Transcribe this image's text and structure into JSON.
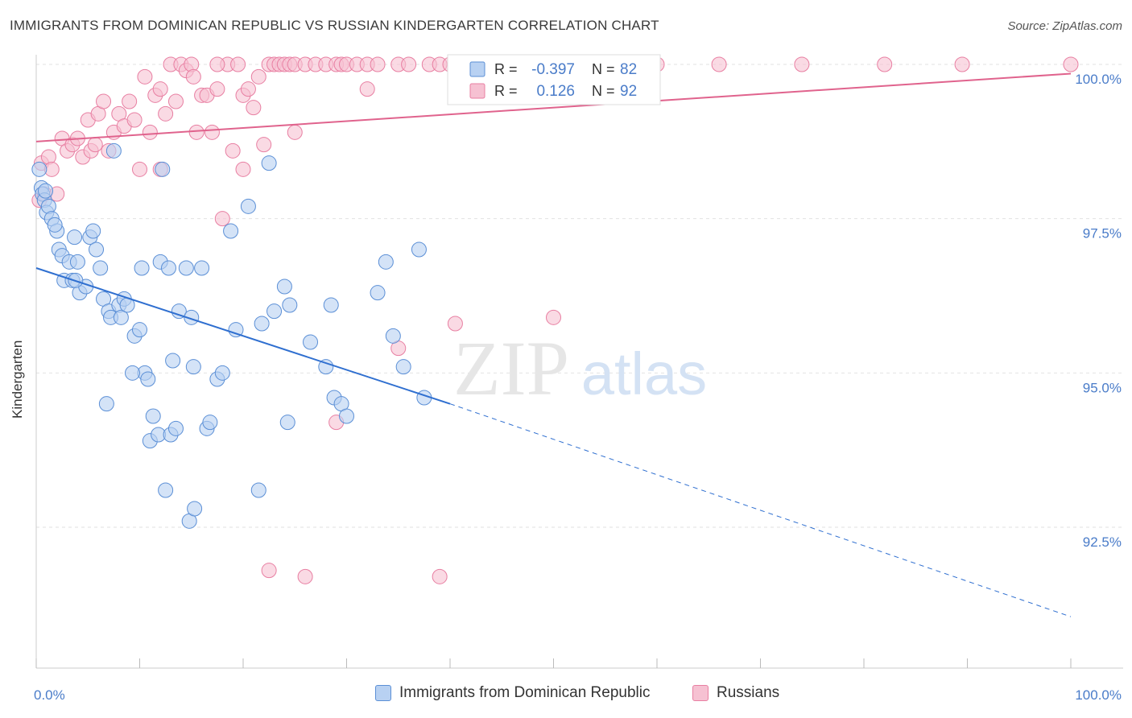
{
  "header": {
    "title": "IMMIGRANTS FROM DOMINICAN REPUBLIC VS RUSSIAN KINDERGARTEN CORRELATION CHART",
    "source": "Source: ZipAtlas.com"
  },
  "watermark": {
    "zip": "ZIP",
    "atlas": "atlas"
  },
  "colors": {
    "blue": "#5b8fd6",
    "blue_fill": "#b8d1f2",
    "blue_line": "#2f6fd0",
    "pink": "#e87fa2",
    "pink_fill": "#f6c1d2",
    "pink_line": "#e0638d",
    "axis_text": "#4a7cc9",
    "grid": "#dddddd"
  },
  "stats_legend": {
    "rows": [
      {
        "r_label": "R =",
        "r_value": "-0.397",
        "n_label": "N =",
        "n_value": "82",
        "series": "blue"
      },
      {
        "r_label": "R =",
        "r_value": "0.126",
        "n_label": "N =",
        "n_value": "92",
        "series": "pink"
      }
    ]
  },
  "chart_data": {
    "type": "scatter",
    "title": "IMMIGRANTS FROM DOMINICAN REPUBLIC VS RUSSIAN KINDERGARTEN CORRELATION CHART",
    "xlabel": "",
    "ylabel": "Kindergarten",
    "xlim": [
      0,
      100
    ],
    "ylim": [
      90.2,
      100.35
    ],
    "x_tick_labels": [
      "0.0%",
      "100.0%"
    ],
    "y_ticks": [
      92.5,
      95.0,
      97.5,
      100.0
    ],
    "y_tick_labels": [
      "92.5%",
      "95.0%",
      "97.5%",
      "100.0%"
    ],
    "grid": true,
    "series": [
      {
        "name": "Immigrants from Dominican Republic",
        "color": "blue",
        "trend": {
          "x0": 0,
          "y0": 96.7,
          "x1": 40,
          "y1": 94.5,
          "dash_to_x": 100,
          "dash_to_y": 91.05
        },
        "points": [
          [
            0.3,
            98.3
          ],
          [
            0.5,
            98.0
          ],
          [
            0.6,
            97.9
          ],
          [
            0.8,
            97.8
          ],
          [
            1.0,
            97.6
          ],
          [
            1.2,
            97.7
          ],
          [
            1.5,
            97.5
          ],
          [
            2.0,
            97.3
          ],
          [
            2.2,
            97.0
          ],
          [
            2.5,
            96.9
          ],
          [
            2.7,
            96.5
          ],
          [
            3.2,
            96.8
          ],
          [
            3.5,
            96.5
          ],
          [
            3.7,
            97.2
          ],
          [
            4.0,
            96.8
          ],
          [
            4.2,
            96.3
          ],
          [
            4.8,
            96.4
          ],
          [
            5.2,
            97.2
          ],
          [
            5.5,
            97.3
          ],
          [
            5.8,
            97.0
          ],
          [
            6.2,
            96.7
          ],
          [
            6.5,
            96.2
          ],
          [
            7.0,
            96.0
          ],
          [
            7.2,
            95.9
          ],
          [
            7.5,
            98.6
          ],
          [
            8.0,
            96.1
          ],
          [
            8.2,
            95.9
          ],
          [
            8.5,
            96.2
          ],
          [
            8.8,
            96.1
          ],
          [
            9.5,
            95.6
          ],
          [
            10.0,
            95.7
          ],
          [
            10.2,
            96.7
          ],
          [
            10.5,
            95.0
          ],
          [
            10.8,
            94.9
          ],
          [
            11.0,
            93.9
          ],
          [
            11.3,
            94.3
          ],
          [
            11.8,
            94.0
          ],
          [
            12.0,
            96.8
          ],
          [
            12.2,
            98.3
          ],
          [
            12.5,
            93.1
          ],
          [
            12.8,
            96.7
          ],
          [
            13.0,
            94.0
          ],
          [
            13.2,
            95.2
          ],
          [
            13.5,
            94.1
          ],
          [
            13.8,
            96.0
          ],
          [
            14.5,
            96.7
          ],
          [
            14.8,
            92.6
          ],
          [
            15.0,
            95.9
          ],
          [
            15.2,
            95.1
          ],
          [
            15.3,
            92.8
          ],
          [
            16.0,
            96.7
          ],
          [
            16.5,
            94.1
          ],
          [
            16.8,
            94.2
          ],
          [
            17.5,
            94.9
          ],
          [
            18.0,
            95.0
          ],
          [
            18.8,
            97.3
          ],
          [
            19.3,
            95.7
          ],
          [
            20.5,
            97.7
          ],
          [
            21.5,
            93.1
          ],
          [
            21.8,
            95.8
          ],
          [
            22.5,
            98.4
          ],
          [
            23.0,
            96.0
          ],
          [
            24.0,
            96.4
          ],
          [
            24.3,
            94.2
          ],
          [
            24.5,
            96.1
          ],
          [
            26.5,
            95.5
          ],
          [
            28.0,
            95.1
          ],
          [
            28.5,
            96.1
          ],
          [
            28.8,
            94.6
          ],
          [
            29.5,
            94.5
          ],
          [
            30.0,
            94.3
          ],
          [
            33.0,
            96.3
          ],
          [
            33.8,
            96.8
          ],
          [
            34.5,
            95.6
          ],
          [
            35.5,
            95.1
          ],
          [
            37.5,
            94.6
          ],
          [
            37.0,
            97.0
          ],
          [
            9.3,
            95.0
          ],
          [
            1.8,
            97.4
          ],
          [
            6.8,
            94.5
          ],
          [
            3.8,
            96.5
          ],
          [
            0.9,
            97.95
          ]
        ]
      },
      {
        "name": "Russians",
        "color": "pink",
        "trend": {
          "x0": 0,
          "y0": 98.75,
          "x1": 100,
          "y1": 99.85
        },
        "points": [
          [
            0.3,
            97.8
          ],
          [
            0.5,
            98.4
          ],
          [
            0.8,
            97.9
          ],
          [
            1.2,
            98.5
          ],
          [
            1.5,
            98.3
          ],
          [
            2.0,
            97.9
          ],
          [
            2.5,
            98.8
          ],
          [
            3.0,
            98.6
          ],
          [
            3.5,
            98.7
          ],
          [
            4.0,
            98.8
          ],
          [
            4.5,
            98.5
          ],
          [
            5.0,
            99.1
          ],
          [
            5.3,
            98.6
          ],
          [
            5.7,
            98.7
          ],
          [
            6.0,
            99.2
          ],
          [
            6.5,
            99.4
          ],
          [
            7.0,
            98.6
          ],
          [
            7.5,
            98.9
          ],
          [
            8.0,
            99.2
          ],
          [
            8.5,
            99.0
          ],
          [
            9.0,
            99.4
          ],
          [
            9.5,
            99.1
          ],
          [
            10.0,
            98.3
          ],
          [
            10.5,
            99.8
          ],
          [
            11.0,
            98.9
          ],
          [
            11.5,
            99.5
          ],
          [
            12.0,
            99.6
          ],
          [
            12.5,
            99.2
          ],
          [
            13.0,
            100.0
          ],
          [
            13.5,
            99.4
          ],
          [
            14.0,
            100.0
          ],
          [
            14.5,
            99.9
          ],
          [
            15.0,
            100.0
          ],
          [
            15.2,
            99.8
          ],
          [
            15.5,
            98.9
          ],
          [
            16.0,
            99.5
          ],
          [
            16.5,
            99.5
          ],
          [
            17.0,
            98.9
          ],
          [
            17.5,
            99.6
          ],
          [
            18.0,
            97.5
          ],
          [
            18.5,
            100.0
          ],
          [
            19.0,
            98.6
          ],
          [
            19.5,
            100.0
          ],
          [
            20.0,
            99.5
          ],
          [
            20.5,
            99.6
          ],
          [
            21.0,
            99.3
          ],
          [
            21.5,
            99.8
          ],
          [
            22.0,
            98.7
          ],
          [
            22.5,
            100.0
          ],
          [
            23.0,
            100.0
          ],
          [
            23.5,
            100.0
          ],
          [
            24.0,
            100.0
          ],
          [
            24.5,
            100.0
          ],
          [
            25.0,
            100.0
          ],
          [
            26.0,
            100.0
          ],
          [
            27.0,
            100.0
          ],
          [
            28.0,
            100.0
          ],
          [
            29.0,
            100.0
          ],
          [
            29.5,
            100.0
          ],
          [
            30.0,
            100.0
          ],
          [
            31.0,
            100.0
          ],
          [
            32.0,
            100.0
          ],
          [
            33.0,
            100.0
          ],
          [
            35.0,
            100.0
          ],
          [
            36.0,
            100.0
          ],
          [
            38.0,
            100.0
          ],
          [
            39.0,
            100.0
          ],
          [
            40.0,
            100.0
          ],
          [
            41.0,
            100.0
          ],
          [
            42.0,
            100.0
          ],
          [
            45.0,
            100.0
          ],
          [
            47.0,
            100.0
          ],
          [
            50.0,
            100.0
          ],
          [
            55.0,
            100.0
          ],
          [
            60.0,
            100.0
          ],
          [
            66.0,
            100.0
          ],
          [
            74.0,
            100.0
          ],
          [
            82.0,
            100.0
          ],
          [
            89.5,
            100.0
          ],
          [
            100.0,
            100.0
          ],
          [
            32.0,
            99.6
          ],
          [
            25.0,
            98.9
          ],
          [
            20.0,
            98.3
          ],
          [
            40.5,
            95.8
          ],
          [
            50.0,
            95.9
          ],
          [
            35.0,
            95.4
          ],
          [
            29.0,
            94.2
          ],
          [
            22.5,
            91.8
          ],
          [
            26.0,
            91.7
          ],
          [
            39.0,
            91.7
          ],
          [
            17.5,
            100.0
          ],
          [
            12.0,
            98.3
          ]
        ]
      }
    ]
  },
  "bottom_legend": {
    "items": [
      {
        "label": "Immigrants from Dominican Republic",
        "series": "blue"
      },
      {
        "label": "Russians",
        "series": "pink"
      }
    ]
  }
}
